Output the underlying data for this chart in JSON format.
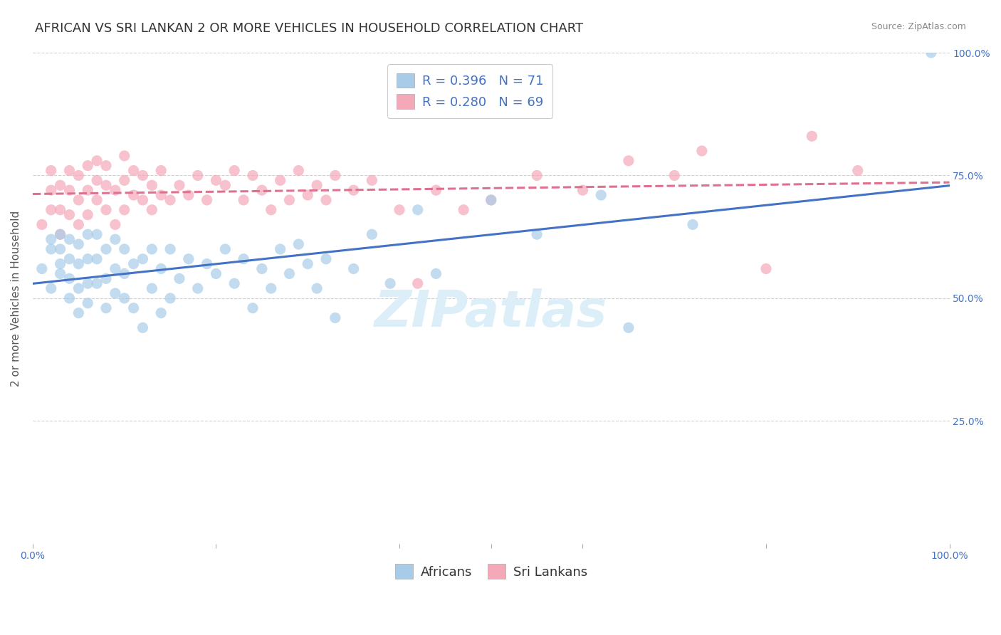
{
  "title": "AFRICAN VS SRI LANKAN 2 OR MORE VEHICLES IN HOUSEHOLD CORRELATION CHART",
  "source": "Source: ZipAtlas.com",
  "ylabel": "2 or more Vehicles in Household",
  "xlim": [
    0.0,
    1.0
  ],
  "ylim": [
    0.0,
    1.0
  ],
  "legend_r_african": "R = 0.396",
  "legend_n_african": "N = 71",
  "legend_r_srilankan": "R = 0.280",
  "legend_n_srilankan": "N = 69",
  "africans_color": "#a8cce8",
  "srilankans_color": "#f4a8b8",
  "trend_african_color": "#4472c4",
  "trend_srilankan_color": "#e07090",
  "watermark": "ZIPatlas",
  "africans_x": [
    0.01,
    0.02,
    0.02,
    0.02,
    0.03,
    0.03,
    0.03,
    0.03,
    0.04,
    0.04,
    0.04,
    0.04,
    0.05,
    0.05,
    0.05,
    0.05,
    0.06,
    0.06,
    0.06,
    0.06,
    0.07,
    0.07,
    0.07,
    0.08,
    0.08,
    0.08,
    0.09,
    0.09,
    0.09,
    0.1,
    0.1,
    0.1,
    0.11,
    0.11,
    0.12,
    0.12,
    0.13,
    0.13,
    0.14,
    0.14,
    0.15,
    0.15,
    0.16,
    0.17,
    0.18,
    0.19,
    0.2,
    0.21,
    0.22,
    0.23,
    0.24,
    0.25,
    0.26,
    0.27,
    0.28,
    0.29,
    0.3,
    0.31,
    0.32,
    0.33,
    0.35,
    0.37,
    0.39,
    0.42,
    0.44,
    0.5,
    0.55,
    0.62,
    0.65,
    0.72,
    0.98
  ],
  "africans_y": [
    0.56,
    0.52,
    0.6,
    0.62,
    0.55,
    0.57,
    0.6,
    0.63,
    0.5,
    0.54,
    0.58,
    0.62,
    0.47,
    0.52,
    0.57,
    0.61,
    0.49,
    0.53,
    0.58,
    0.63,
    0.53,
    0.58,
    0.63,
    0.48,
    0.54,
    0.6,
    0.51,
    0.56,
    0.62,
    0.5,
    0.55,
    0.6,
    0.48,
    0.57,
    0.44,
    0.58,
    0.52,
    0.6,
    0.47,
    0.56,
    0.5,
    0.6,
    0.54,
    0.58,
    0.52,
    0.57,
    0.55,
    0.6,
    0.53,
    0.58,
    0.48,
    0.56,
    0.52,
    0.6,
    0.55,
    0.61,
    0.57,
    0.52,
    0.58,
    0.46,
    0.56,
    0.63,
    0.53,
    0.68,
    0.55,
    0.7,
    0.63,
    0.71,
    0.44,
    0.65,
    1.0
  ],
  "srilankans_x": [
    0.01,
    0.02,
    0.02,
    0.02,
    0.03,
    0.03,
    0.03,
    0.04,
    0.04,
    0.04,
    0.05,
    0.05,
    0.05,
    0.06,
    0.06,
    0.06,
    0.07,
    0.07,
    0.07,
    0.08,
    0.08,
    0.08,
    0.09,
    0.09,
    0.1,
    0.1,
    0.1,
    0.11,
    0.11,
    0.12,
    0.12,
    0.13,
    0.13,
    0.14,
    0.14,
    0.15,
    0.16,
    0.17,
    0.18,
    0.19,
    0.2,
    0.21,
    0.22,
    0.23,
    0.24,
    0.25,
    0.26,
    0.27,
    0.28,
    0.29,
    0.3,
    0.31,
    0.32,
    0.33,
    0.35,
    0.37,
    0.4,
    0.42,
    0.44,
    0.47,
    0.5,
    0.55,
    0.6,
    0.65,
    0.7,
    0.73,
    0.8,
    0.85,
    0.9
  ],
  "srilankans_y": [
    0.65,
    0.68,
    0.72,
    0.76,
    0.63,
    0.68,
    0.73,
    0.67,
    0.72,
    0.76,
    0.65,
    0.7,
    0.75,
    0.67,
    0.72,
    0.77,
    0.7,
    0.74,
    0.78,
    0.68,
    0.73,
    0.77,
    0.65,
    0.72,
    0.68,
    0.74,
    0.79,
    0.71,
    0.76,
    0.7,
    0.75,
    0.68,
    0.73,
    0.71,
    0.76,
    0.7,
    0.73,
    0.71,
    0.75,
    0.7,
    0.74,
    0.73,
    0.76,
    0.7,
    0.75,
    0.72,
    0.68,
    0.74,
    0.7,
    0.76,
    0.71,
    0.73,
    0.7,
    0.75,
    0.72,
    0.74,
    0.68,
    0.53,
    0.72,
    0.68,
    0.7,
    0.75,
    0.72,
    0.78,
    0.75,
    0.8,
    0.56,
    0.83,
    0.76
  ],
  "title_fontsize": 13,
  "axis_label_fontsize": 11,
  "tick_fontsize": 10,
  "legend_fontsize": 13,
  "watermark_fontsize": 52,
  "watermark_color": "#dceef8",
  "background_color": "#ffffff",
  "grid_color": "#cccccc",
  "title_color": "#333333",
  "axis_label_color": "#555555",
  "tick_label_color": "#4472c4",
  "source_color": "#888888"
}
